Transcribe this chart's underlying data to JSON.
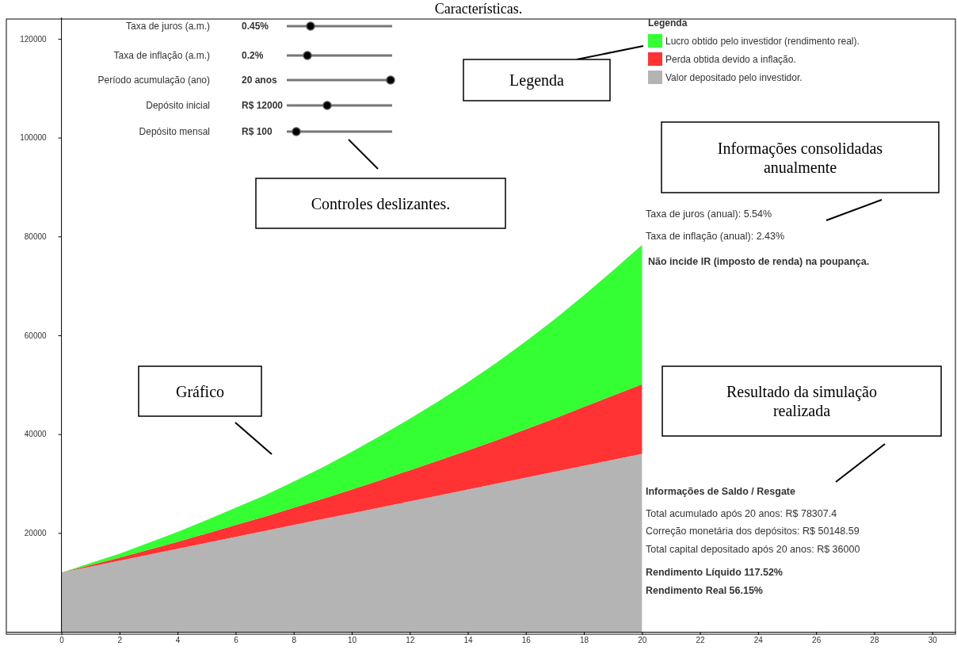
{
  "chart_data": {
    "type": "area",
    "stacked": true,
    "title": "Características.",
    "legend_title": "Legenda",
    "legend": "top right",
    "grid": false,
    "x": [
      0,
      1,
      2,
      3,
      4,
      5,
      6,
      7,
      8,
      9,
      10,
      11,
      12,
      13,
      14,
      15,
      16,
      17,
      18,
      19,
      20
    ],
    "series": [
      {
        "name": "Valor depositado pelo investidor.",
        "color": "#b4b4b4",
        "values": [
          12000,
          13200,
          14400,
          15600,
          16800,
          18000,
          19200,
          20400,
          21600,
          22800,
          24000,
          25200,
          26400,
          27600,
          28800,
          30000,
          31200,
          32400,
          33600,
          34800,
          36000
        ]
      },
      {
        "name": "Perda obtida devido a inflação.",
        "color": "#ff3333",
        "values": [
          0,
          300,
          600,
          1000,
          1400,
          1900,
          2400,
          2900,
          3500,
          4100,
          4800,
          5500,
          6300,
          7100,
          7900,
          8800,
          9800,
          10800,
          11900,
          13000,
          14100
        ]
      },
      {
        "name": "Lucro obtido pelo investidor (rendimento real).",
        "color": "#33ff33",
        "values": [
          0,
          400,
          800,
          1400,
          2000,
          2700,
          3500,
          4300,
          5300,
          6400,
          7600,
          9000,
          10400,
          12000,
          13800,
          15700,
          17800,
          20100,
          22600,
          25300,
          28200
        ]
      }
    ],
    "xlim": [
      -1.9,
      30.8
    ],
    "ylim": [
      0,
      124000
    ],
    "xticks": [
      0,
      2,
      4,
      6,
      8,
      10,
      12,
      14,
      16,
      18,
      20,
      22,
      24,
      26,
      28,
      30
    ],
    "yticks": [
      20000,
      40000,
      60000,
      80000,
      100000,
      120000
    ],
    "annotations": [
      "Taxa de juros (a.m.)",
      "0.45%",
      "Taxa de inflação (a.m.)",
      "0.2%",
      "Período acumulação (ano)",
      "20 anos",
      "Depósito inicial",
      "R$ 12000",
      "Depósito mensal",
      "R$ 100",
      "Legenda",
      "Controles deslizantes.",
      "Informações consolidadas anualmente",
      "Gráfico",
      "Resultado da simulação realizada",
      "Taxa de juros (anual): 5.54%",
      "Taxa de inflação (anual): 2.43%",
      "Não incide IR (imposto de renda) na poupança.",
      "Informações de Saldo / Resgate",
      "Total acumulado após 20 anos: R$ 78307.4",
      "Correção monetária dos depósitos: R$ 50148.59",
      "Total capital depositado após 20 anos: R$ 36000",
      "Rendimento Líquido 117.52%",
      "Rendimento Real 56.15%"
    ]
  }
}
